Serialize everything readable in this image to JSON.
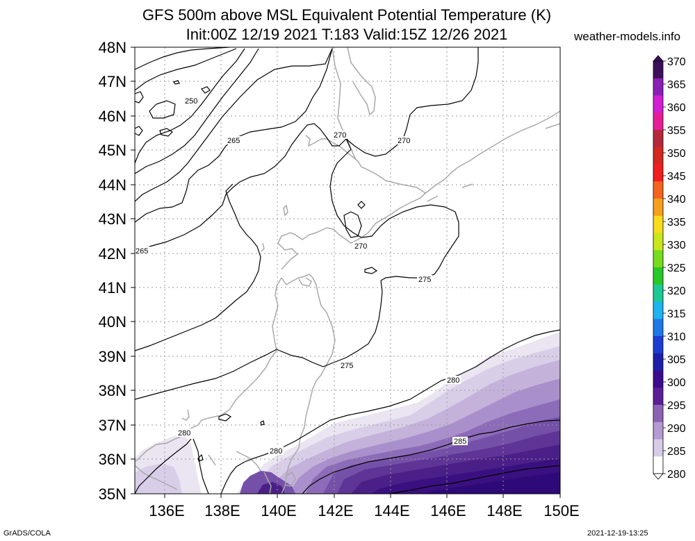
{
  "header": {
    "title_line1": "GFS 500m above MSL Equivalent Potential Temperature (K)",
    "title_line2": "Init:00Z 12/19 2021 T:183 Valid:15Z 12/26 2021",
    "site": "weather-models.info"
  },
  "axes": {
    "lat_labels": [
      "48N",
      "47N",
      "46N",
      "45N",
      "44N",
      "43N",
      "42N",
      "41N",
      "40N",
      "39N",
      "38N",
      "37N",
      "36N",
      "35N"
    ],
    "lon_labels": [
      "136E",
      "138E",
      "140E",
      "142E",
      "144E",
      "146E",
      "148E",
      "150E"
    ]
  },
  "colorbar": {
    "labels": [
      "370",
      "365",
      "360",
      "355",
      "350",
      "345",
      "340",
      "335",
      "330",
      "325",
      "320",
      "315",
      "310",
      "305",
      "300",
      "295",
      "290",
      "285",
      "280"
    ],
    "colors": [
      "#3c0f5a",
      "#8a1fb5",
      "#d41ed4",
      "#e61e96",
      "#b4283c",
      "#d2281e",
      "#f01e1e",
      "#f5641e",
      "#f5a01e",
      "#f5dc1e",
      "#c8e61e",
      "#78dc1e",
      "#28c828",
      "#1ec896",
      "#1eb4f0",
      "#1e78e6",
      "#1e3cd2",
      "#1e1eaa",
      "#3c0a8c",
      "#5a1e96",
      "#8c64b4",
      "#b49cd2",
      "#d7cbe6",
      "#ffffff"
    ]
  },
  "contour_labels": [
    "250",
    "265",
    "265",
    "270",
    "270",
    "270",
    "275",
    "275",
    "280",
    "280",
    "280",
    "285"
  ],
  "footer": {
    "left": "GrADS/COLA",
    "right": "2021-12-19-13:25"
  }
}
